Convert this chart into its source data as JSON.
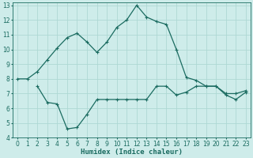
{
  "xlabel": "Humidex (Indice chaleur)",
  "bg_color": "#ceecea",
  "grid_color": "#aed8d4",
  "line_color": "#1a6b60",
  "xlim": [
    -0.5,
    23.5
  ],
  "ylim": [
    4,
    13.2
  ],
  "xticks": [
    0,
    1,
    2,
    3,
    4,
    5,
    6,
    7,
    8,
    9,
    10,
    11,
    12,
    13,
    14,
    15,
    16,
    17,
    18,
    19,
    20,
    21,
    22,
    23
  ],
  "yticks": [
    4,
    5,
    6,
    7,
    8,
    9,
    10,
    11,
    12,
    13
  ],
  "line1_x": [
    0,
    1,
    2,
    3,
    4,
    5,
    6,
    7,
    8,
    9,
    10,
    11,
    12,
    13,
    14,
    15,
    16,
    17,
    18,
    19,
    20,
    21,
    22,
    23
  ],
  "line1_y": [
    8.0,
    8.0,
    8.5,
    9.3,
    10.1,
    10.8,
    11.1,
    10.5,
    9.8,
    10.5,
    11.5,
    12.0,
    13.0,
    12.2,
    11.9,
    11.7,
    10.0,
    8.1,
    7.9,
    7.5,
    7.5,
    7.0,
    7.0,
    7.2
  ],
  "line2_x": [
    2,
    3,
    4,
    5,
    6,
    7,
    8,
    9,
    10,
    11,
    12,
    13,
    14,
    15,
    16,
    17,
    18,
    19,
    20,
    21,
    22,
    23
  ],
  "line2_y": [
    7.5,
    6.4,
    6.3,
    4.6,
    4.7,
    5.6,
    6.6,
    6.6,
    6.6,
    6.6,
    6.6,
    6.6,
    7.5,
    7.5,
    6.9,
    7.1,
    7.5,
    7.5,
    7.5,
    6.9,
    6.6,
    7.1
  ]
}
